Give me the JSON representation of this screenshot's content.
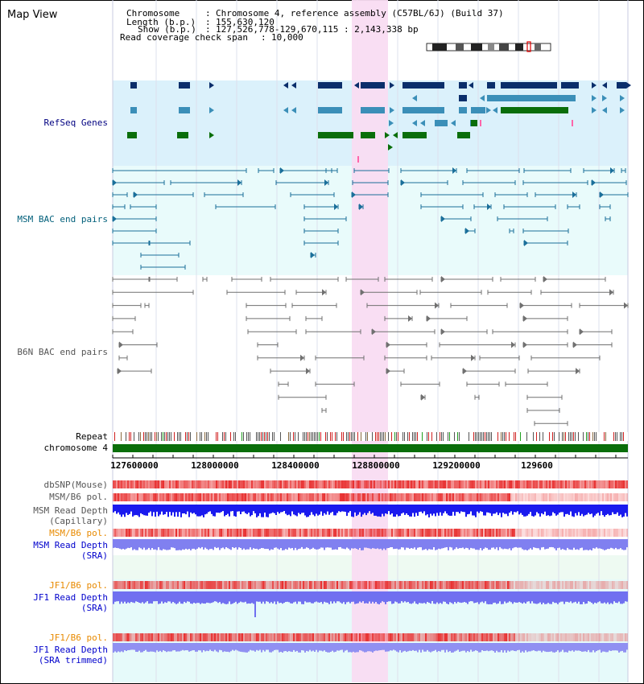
{
  "app": {
    "title": "Map View"
  },
  "info": {
    "chromosome_key": "Chromosome",
    "chromosome_val": "Chromosome 4, reference assembly (C57BL/6J) (Build 37)",
    "length_key": "Length (b.p.)",
    "length_val": "155,630,120",
    "show_key": "Show (b.p.)",
    "show_val": "127,526,778-129,670,115 : 2,143,338 bp",
    "span_key": "Read coverage check span",
    "span_val": "10,000"
  },
  "tracks": {
    "refseq": "RefSeq Genes",
    "msm_bac": "MSM BAC end pairs",
    "b6n_bac": "B6N BAC end pairs",
    "repeat": "Repeat",
    "chromosome": "chromosome 4",
    "dbsnp": "dbSNP(Mouse)",
    "msm_b6_pol": "MSM/B6 pol.",
    "msm_depth_cap_1": "MSM Read Depth",
    "msm_depth_cap_2": "(Capillary)",
    "msm_b6_pol_2": "MSM/B6 pol.",
    "msm_depth_sra_1": "MSM Read Depth",
    "msm_depth_sra_2": "(SRA)",
    "jf1_b6_pol": "JF1/B6 pol.",
    "jf1_depth_sra_1": "JF1 Read Depth",
    "jf1_depth_sra_2": "(SRA)",
    "jf1_b6_pol_2": "JF1/B6 pol.",
    "jf1_depth_trim_1": "JF1 Read Depth",
    "jf1_depth_trim_2": "(SRA trimmed)"
  },
  "axis": {
    "ticks": [
      "127600000",
      "128000000",
      "128400000",
      "128800000",
      "129200000",
      "129600"
    ]
  },
  "colors": {
    "refseq_bg": "#dbf1fb",
    "bac_bg": "#e9fbfb",
    "highlight": "#f9dcf2",
    "gene_dark": "#0b2e6b",
    "gene_mid": "#3b8fb8",
    "gene_green": "#0a6e0a",
    "msm_pair": "#1a6f9a",
    "b6n_pair": "#707070",
    "chrom_bar": "#0a6e0a",
    "depth_blue": "#1f1fe6",
    "depth_light": "#7f7ff2",
    "pol_red": "#e84040",
    "label_navy": "#000080",
    "label_teal": "#005f7a",
    "label_gray": "#555555",
    "label_orange": "#e88a00",
    "label_blue": "#0000cc"
  }
}
